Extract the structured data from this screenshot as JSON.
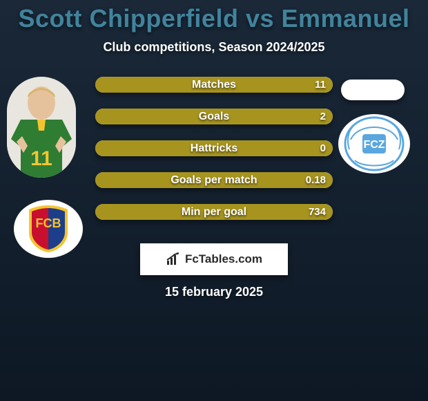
{
  "title_color": "#41839c",
  "title": "Scott Chipperfield vs Emmanuel",
  "subtitle": "Club competitions, Season 2024/2025",
  "date": "15 february 2025",
  "footer": {
    "brand": "FcTables.com"
  },
  "bars": {
    "fill_color": "#a7941f",
    "bg_color": "#ffffff",
    "items": [
      {
        "label": "Matches",
        "left": "",
        "right": "11",
        "left_pct": 0,
        "right_pct": 100
      },
      {
        "label": "Goals",
        "left": "",
        "right": "2",
        "left_pct": 0,
        "right_pct": 100
      },
      {
        "label": "Hattricks",
        "left": "",
        "right": "0",
        "left_pct": 0,
        "right_pct": 100
      },
      {
        "label": "Goals per match",
        "left": "",
        "right": "0.18",
        "left_pct": 0,
        "right_pct": 100
      },
      {
        "label": "Min per goal",
        "left": "",
        "right": "734",
        "left_pct": 0,
        "right_pct": 100
      }
    ]
  },
  "badges": {
    "left": {
      "name": "fc-basel",
      "primary": "#c8102e",
      "secondary": "#1d3e8a",
      "accent": "#f4c430"
    },
    "right": {
      "name": "fc-zurich",
      "primary": "#5aa7e0",
      "secondary": "#ffffff"
    }
  },
  "players": {
    "left": {
      "shirt_color": "#2e7d32",
      "number": "11",
      "skin": "#e6c29c",
      "hair": "#d8b36a"
    },
    "right": {
      "placeholder": true
    }
  }
}
